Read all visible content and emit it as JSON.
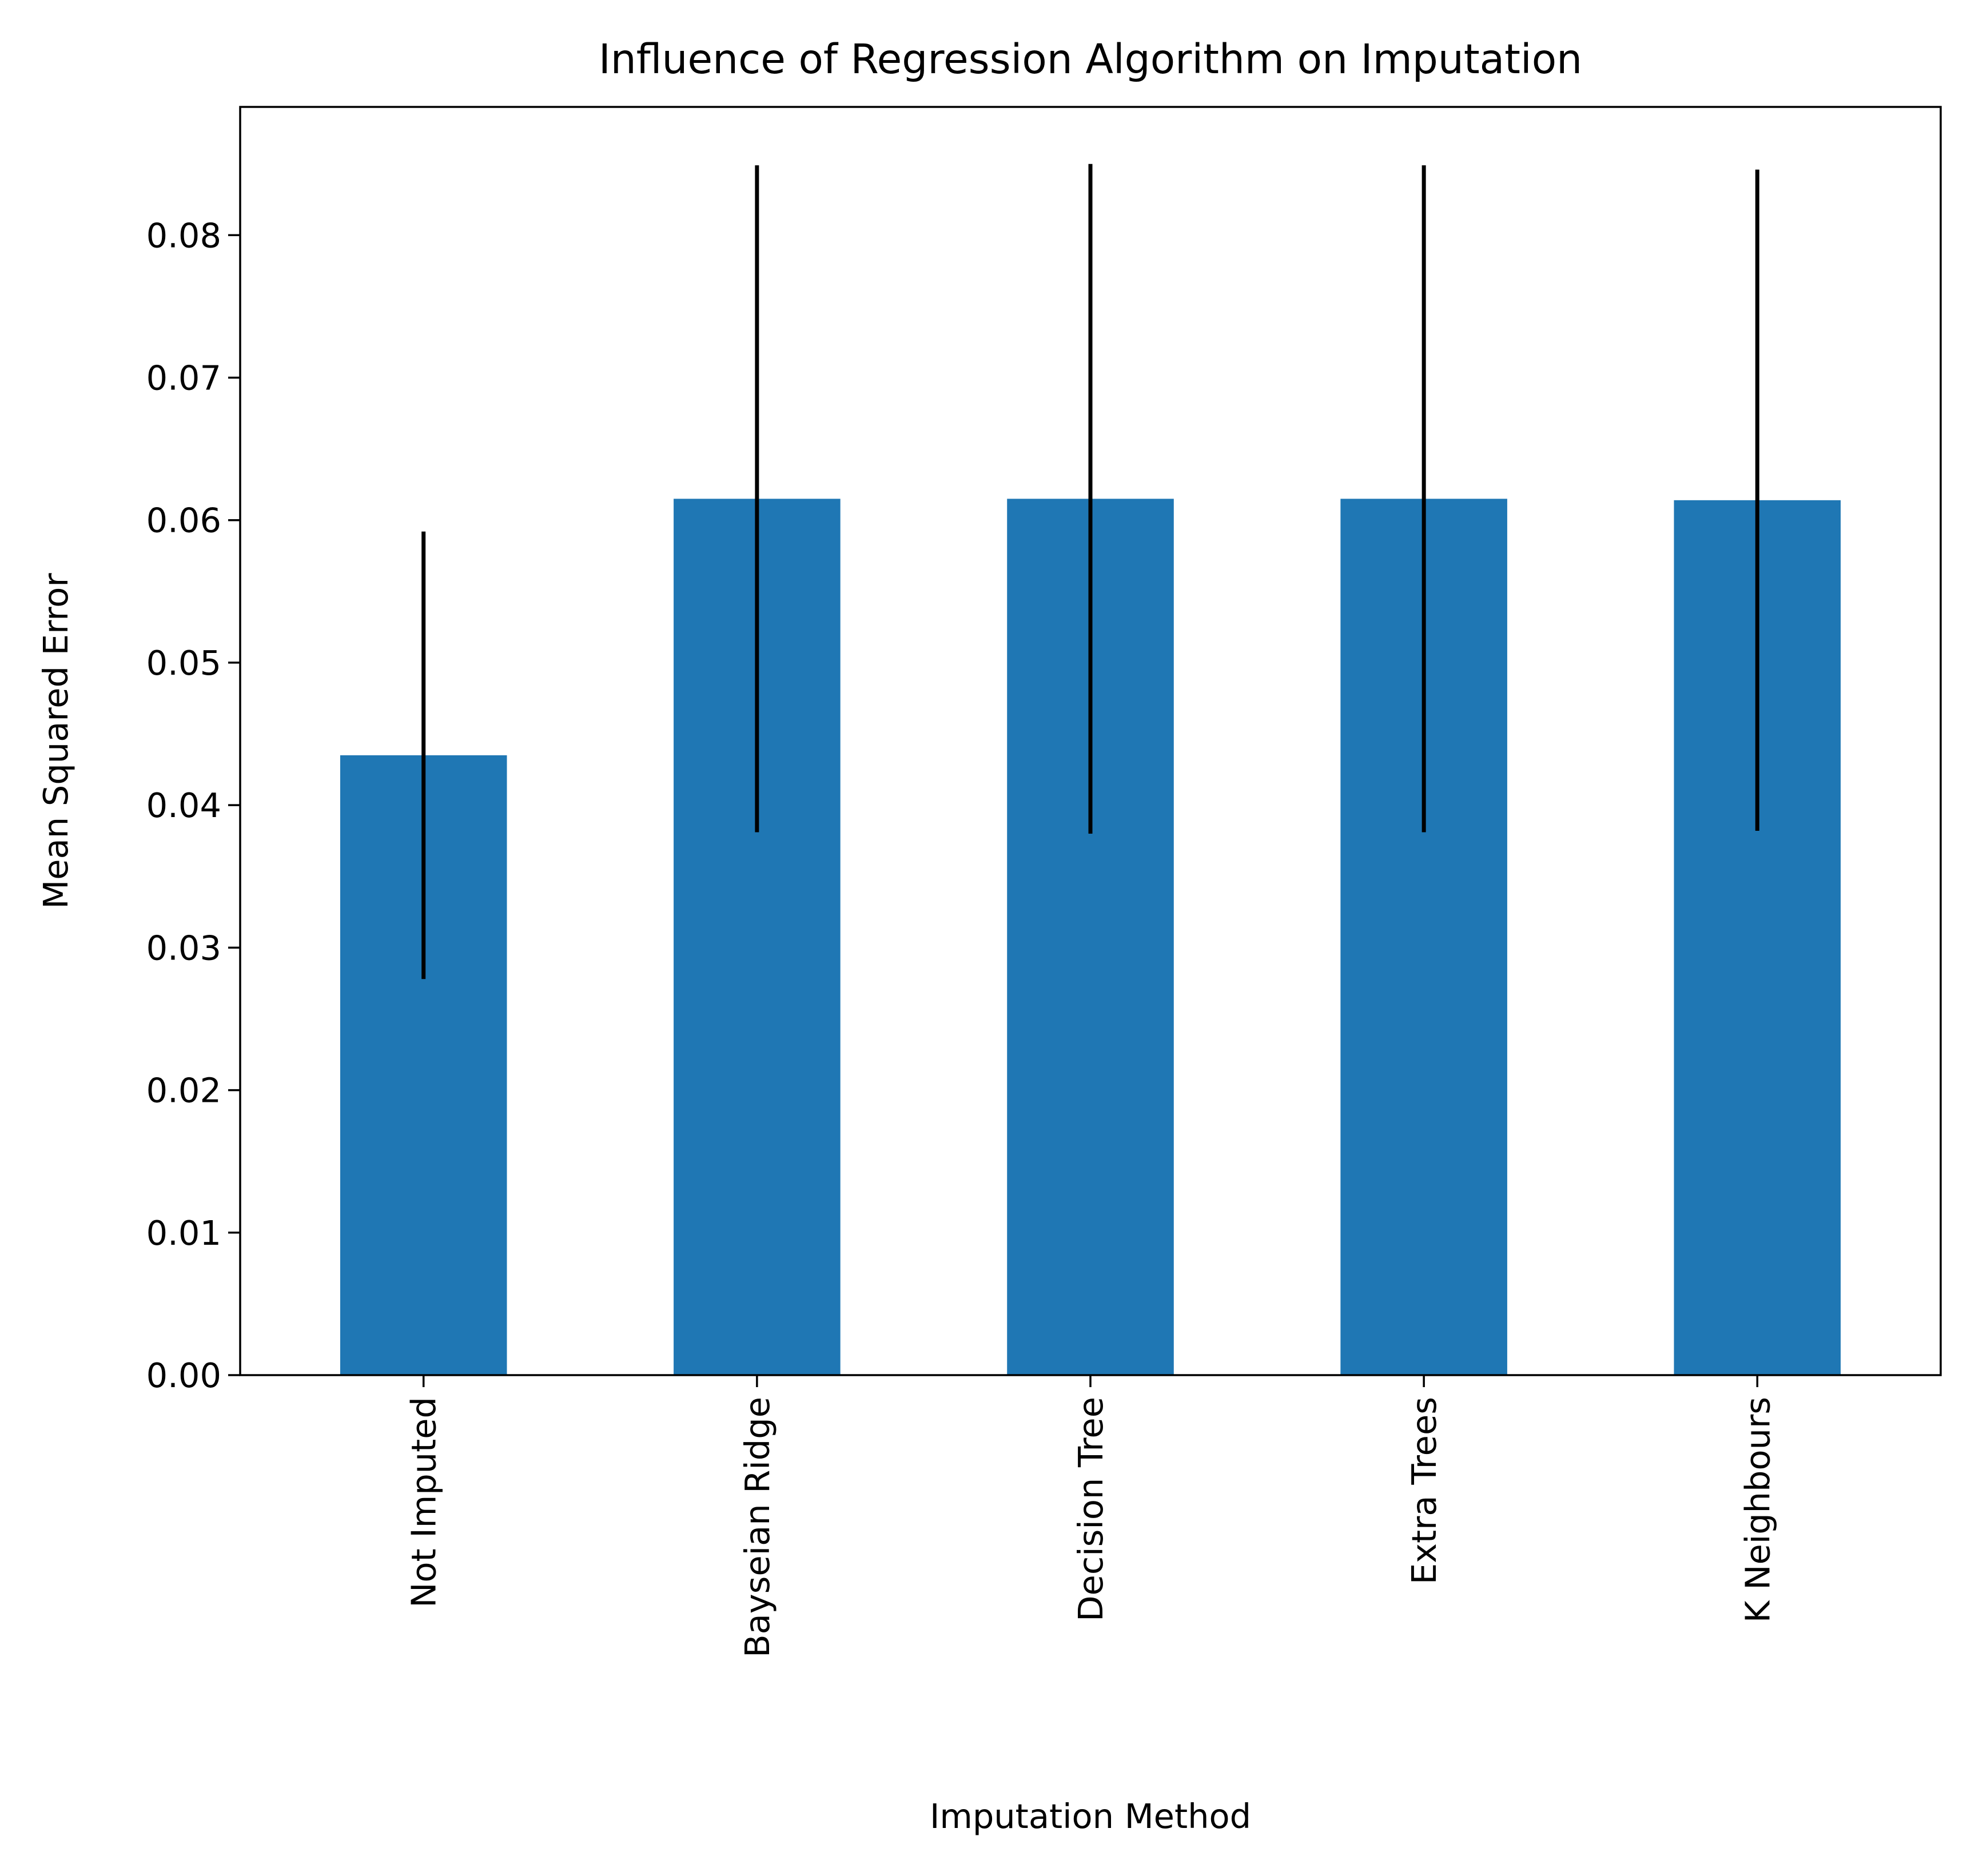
{
  "chart_data": {
    "type": "bar",
    "title": "Influence of Regression Algorithm on Imputation",
    "xlabel": "Imputation Method",
    "ylabel": "Mean Squared Error",
    "categories": [
      "Not Imputed",
      "Bayseian Ridge",
      "Decision Tree",
      "Extra Trees",
      "K Neighbours"
    ],
    "values": [
      0.0435,
      0.0615,
      0.0615,
      0.0615,
      0.0614
    ],
    "errors": [
      0.0157,
      0.0234,
      0.0235,
      0.0234,
      0.0232
    ],
    "ylim": [
      0,
      0.089
    ],
    "yticks": [
      0.0,
      0.01,
      0.02,
      0.03,
      0.04,
      0.05,
      0.06,
      0.07,
      0.08
    ],
    "ytick_labels": [
      "0.00",
      "0.01",
      "0.02",
      "0.03",
      "0.04",
      "0.05",
      "0.06",
      "0.07",
      "0.08"
    ],
    "bar_color": "#1f77b4",
    "error_color": "#000000",
    "grid": false,
    "legend": "none"
  }
}
